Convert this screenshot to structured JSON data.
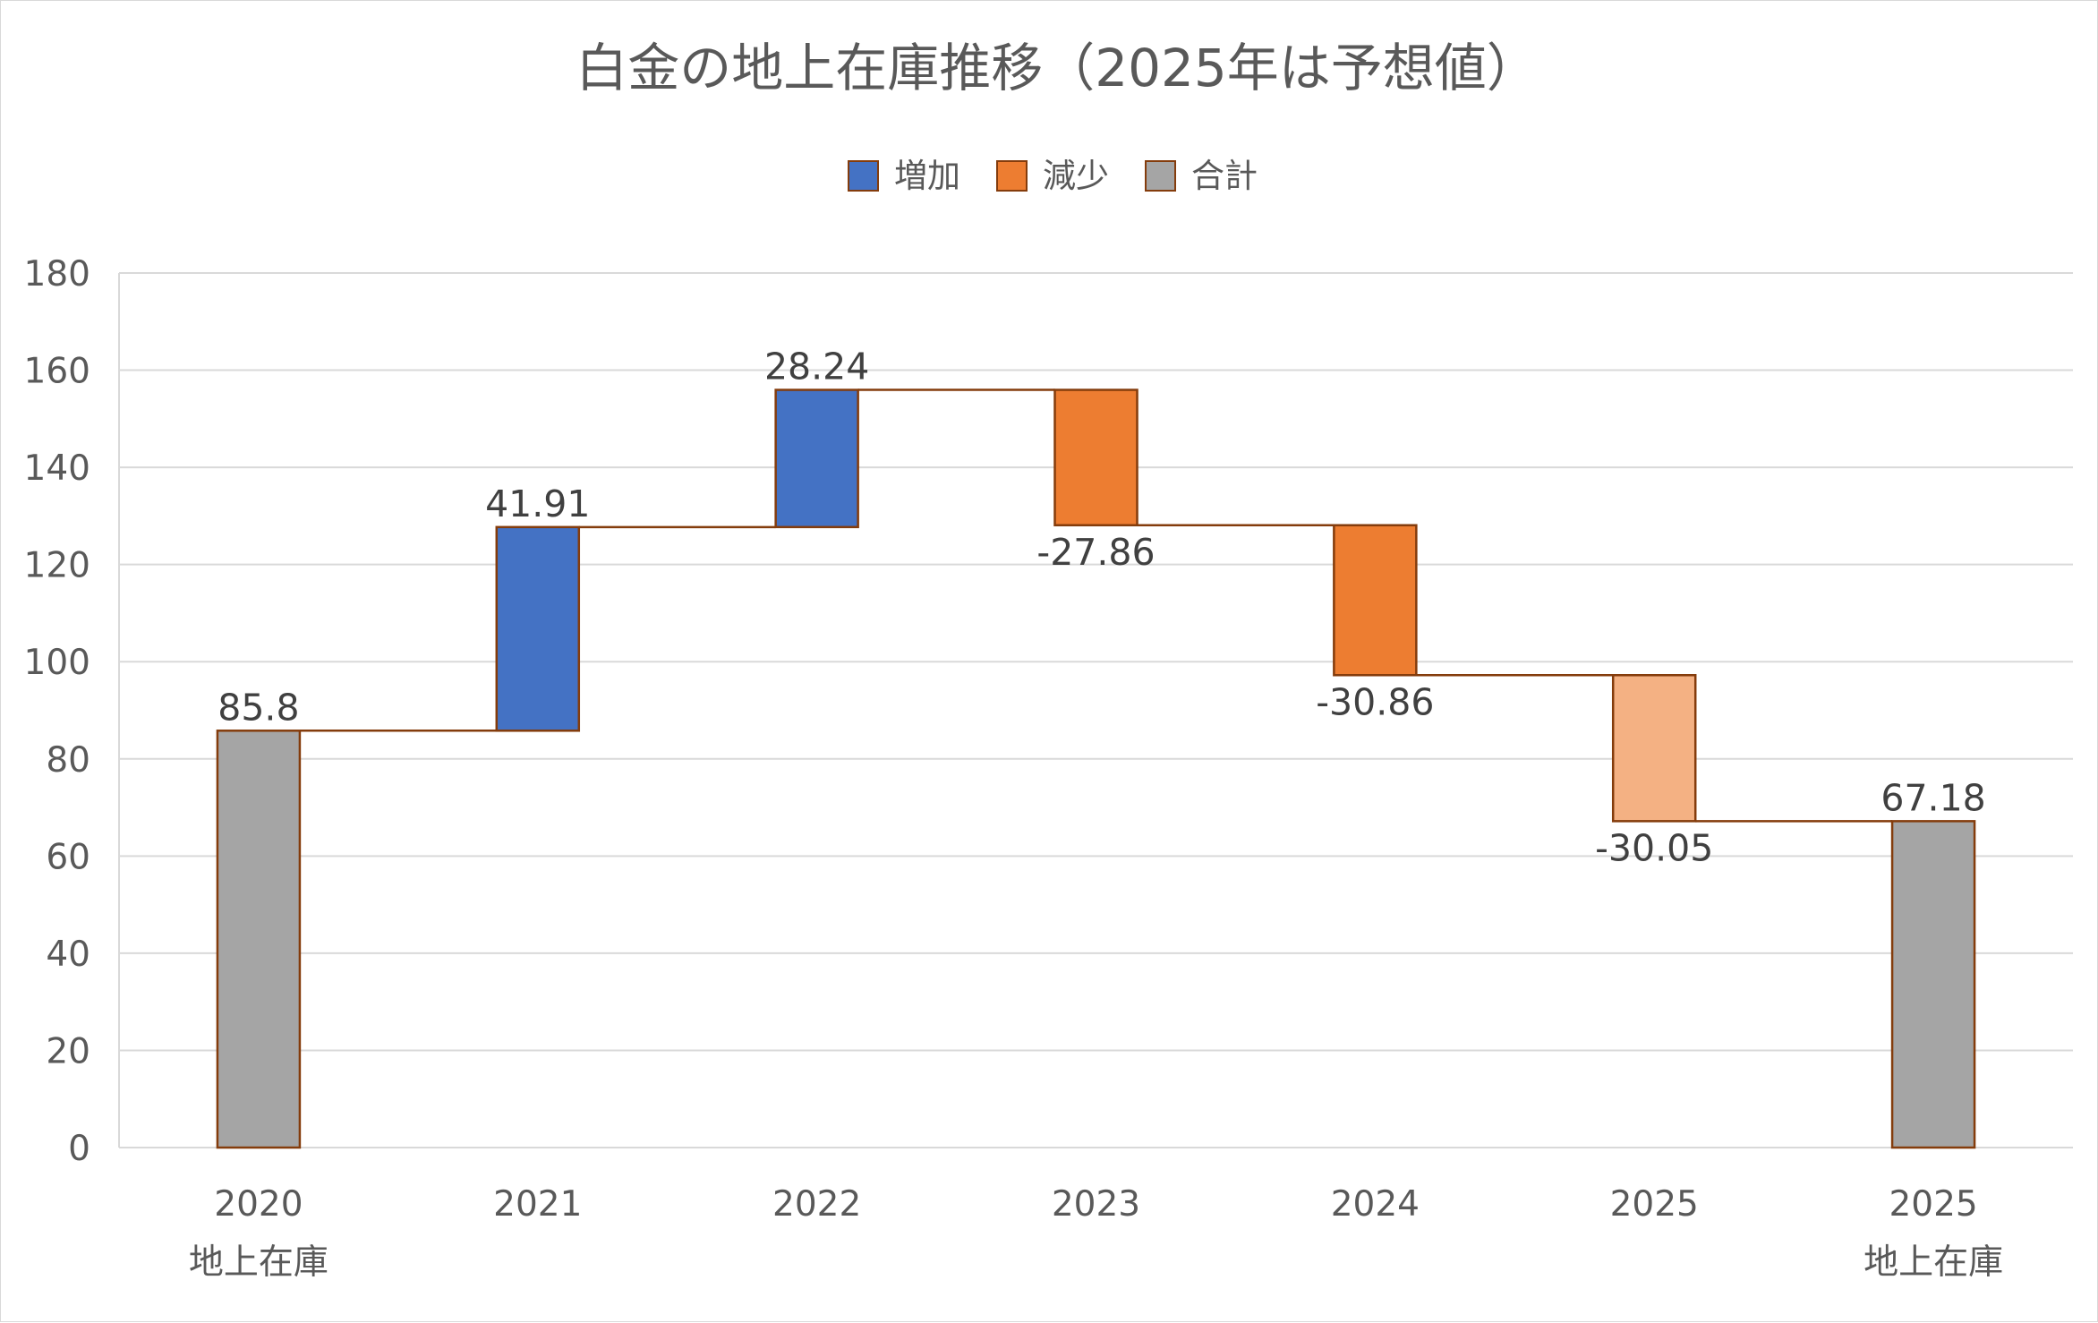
{
  "chart_data": {
    "type": "waterfall",
    "title": "白金の地上在庫推移（2025年は予想値）",
    "legend": {
      "placement": "top",
      "entries": [
        {
          "key": "increase",
          "label": "増加",
          "color": "#4472c4"
        },
        {
          "key": "decrease",
          "label": "減少",
          "color": "#ed7d31"
        },
        {
          "key": "total",
          "label": "合計",
          "color": "#a5a5a5"
        }
      ]
    },
    "y_axis": {
      "min": 0,
      "max": 180,
      "step": 20,
      "ticks": [
        0,
        20,
        40,
        60,
        80,
        100,
        120,
        140,
        160,
        180
      ]
    },
    "grid": true,
    "categories": [
      {
        "year": "2020",
        "sub": "地上在庫"
      },
      {
        "year": "2021",
        "sub": ""
      },
      {
        "year": "2022",
        "sub": ""
      },
      {
        "year": "2023",
        "sub": ""
      },
      {
        "year": "2024",
        "sub": ""
      },
      {
        "year": "2025",
        "sub": ""
      },
      {
        "year": "2025",
        "sub": "地上在庫"
      }
    ],
    "values": [
      85.8,
      41.91,
      28.24,
      -27.86,
      -30.86,
      -30.05,
      67.18
    ],
    "data_labels": [
      "85.8",
      "41.91",
      "28.24",
      "-27.86",
      "-30.86",
      "-30.05",
      "67.18"
    ],
    "kinds": [
      "total",
      "increase",
      "increase",
      "decrease",
      "decrease",
      "decrease_forecast",
      "total"
    ],
    "colors": {
      "increase": "#4472c4",
      "decrease": "#ed7d31",
      "decrease_forecast": "#f4b183",
      "total": "#a5a5a5",
      "border": "#843c0c",
      "grid": "#d9d9d9"
    }
  }
}
